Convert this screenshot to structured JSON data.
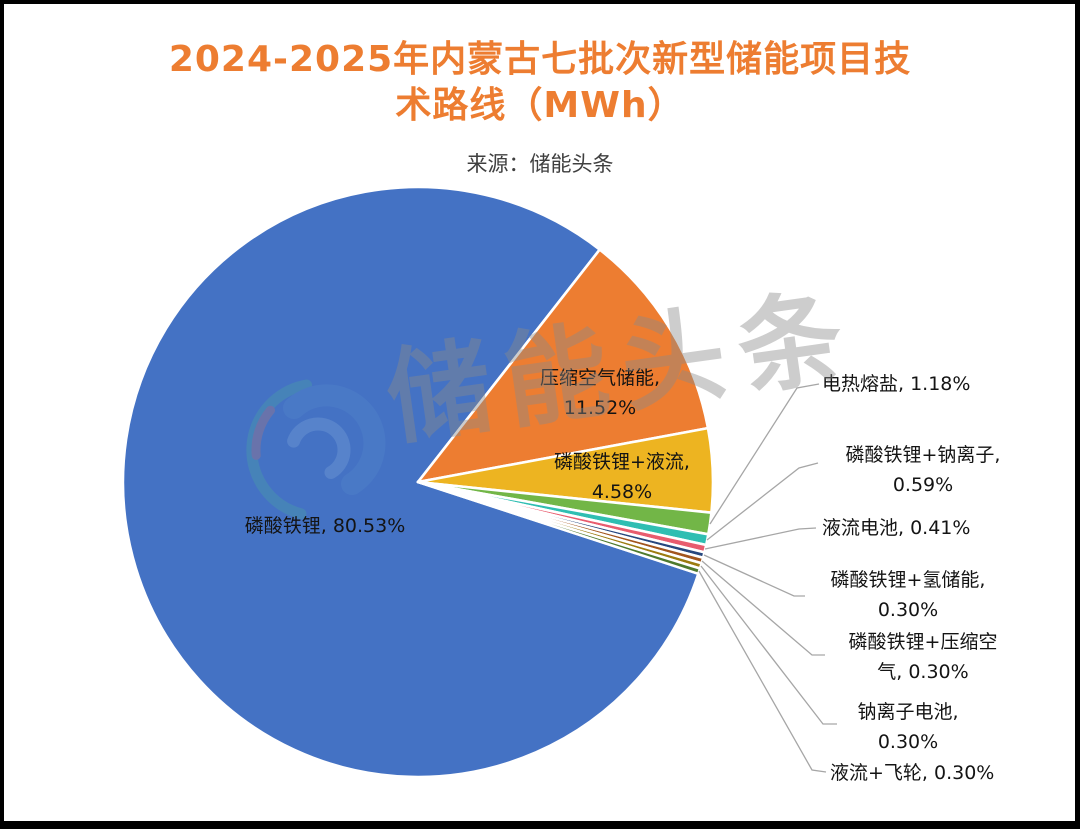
{
  "header": {
    "title_line1": "2024-2025年内蒙古七批次新型储能项目技",
    "title_line2": "术路线（MWh）",
    "title_color": "#ED7D31",
    "source_label": "来源：储能头条"
  },
  "watermark": {
    "text": "储能头条",
    "color": "#8a8a8a"
  },
  "chart_data": {
    "type": "pie",
    "title": "2024-2025年内蒙古七批次新型储能项目技术路线（MWh）",
    "source": "来源：储能头条",
    "unit": "MWh",
    "start_angle_deg": -18.1,
    "direction": "clockwise",
    "separator_color": "#ffffff",
    "leader_line_color": "#A6A6A6",
    "slices": [
      {
        "label": "磷酸铁锂",
        "pct": 80.53,
        "color": "#4472C4",
        "label_layout": "inside"
      },
      {
        "label": "压缩空气储能",
        "pct": 11.52,
        "color": "#ED7D31",
        "label_layout": "inside"
      },
      {
        "label": "磷酸铁锂+液流",
        "pct": 4.58,
        "color": "#EDB421",
        "label_layout": "inside"
      },
      {
        "label": "电热熔盐",
        "pct": 1.18,
        "color": "#72B647",
        "label_layout": "outside"
      },
      {
        "label": "磷酸铁锂+钠离子",
        "pct": 0.59,
        "color": "#2FBEB2",
        "label_layout": "outside"
      },
      {
        "label": "液流电池",
        "pct": 0.41,
        "color": "#E85C6E",
        "label_layout": "outside"
      },
      {
        "label": "磷酸铁锂+氢储能",
        "pct": 0.3,
        "color": "#27477E",
        "label_layout": "outside"
      },
      {
        "label": "磷酸铁锂+压缩空气",
        "pct": 0.3,
        "color": "#A2551D",
        "label_layout": "outside"
      },
      {
        "label": "钠离子电池",
        "pct": 0.3,
        "color": "#9C7B10",
        "label_layout": "outside"
      },
      {
        "label": "液流+飞轮",
        "pct": 0.3,
        "color": "#4E7A2E",
        "label_layout": "outside"
      }
    ]
  },
  "labels": {
    "inside": [
      {
        "text": "磷酸铁锂, 80.53%"
      },
      {
        "text": "压缩空气储能,\n11.52%"
      },
      {
        "text": "磷酸铁锂+液流,\n4.58%"
      }
    ],
    "outside": [
      {
        "text": "电热熔盐, 1.18%"
      },
      {
        "text": "磷酸铁锂+钠离子,\n0.59%"
      },
      {
        "text": "液流电池, 0.41%"
      },
      {
        "text": "磷酸铁锂+氢储能,\n0.30%"
      },
      {
        "text": "磷酸铁锂+压缩空\n气, 0.30%"
      },
      {
        "text": "钠离子电池,\n0.30%"
      },
      {
        "text": "液流+飞轮, 0.30%"
      }
    ]
  }
}
